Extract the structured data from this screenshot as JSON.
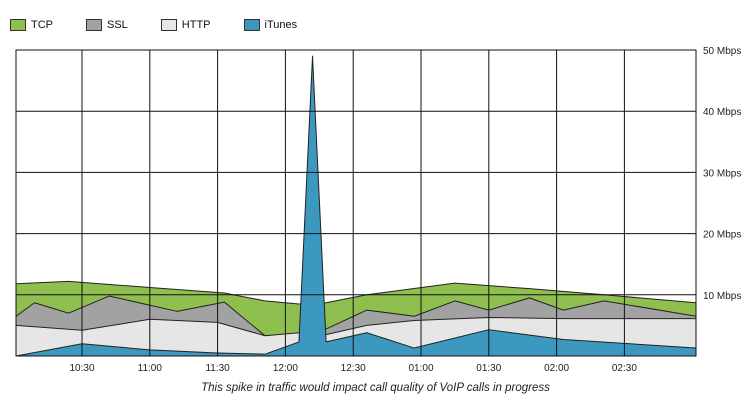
{
  "chart_data": {
    "type": "area",
    "stacked": true,
    "x_tick_labels": [
      "10:30",
      "11:00",
      "11:30",
      "12:00",
      "12:30",
      "01:00",
      "01:30",
      "02:00",
      "02:30"
    ],
    "y_tick_labels": [
      "10 Mbps",
      "20 Mbps",
      "30 Mbps",
      "40 Mbps",
      "50 Mbps"
    ],
    "ylim": [
      0,
      50
    ],
    "y_axis_side": "right",
    "grid": true,
    "legend_placement": "top-left",
    "caption": "This spike in traffic would impact call quality of VoIP calls in progress",
    "series": [
      {
        "name": "iTunes",
        "color": "#3c98bf",
        "points": [
          [
            0,
            0
          ],
          [
            1,
            2
          ],
          [
            2,
            1
          ],
          [
            3,
            0.5
          ],
          [
            3.7,
            0.3
          ],
          [
            4.2,
            2.3
          ],
          [
            4.4,
            49
          ],
          [
            4.6,
            2.3
          ],
          [
            5.2,
            3.8
          ],
          [
            5.9,
            1.3
          ],
          [
            7,
            4.3
          ],
          [
            8.1,
            2.7
          ],
          [
            9,
            1.3
          ]
        ]
      },
      {
        "name": "HTTP",
        "color": "#e6e6e6",
        "points": [
          [
            0,
            5
          ],
          [
            1,
            4.2
          ],
          [
            2,
            6
          ],
          [
            3,
            5.5
          ],
          [
            3.7,
            3.3
          ],
          [
            4.2,
            3.8
          ],
          [
            4.4,
            3.7
          ],
          [
            4.6,
            3.5
          ],
          [
            5.2,
            5
          ],
          [
            5.9,
            5.8
          ],
          [
            7,
            6.3
          ],
          [
            8.1,
            6.1
          ],
          [
            9,
            6.1
          ]
        ]
      },
      {
        "name": "SSL",
        "color": "#a2a2a2",
        "points": [
          [
            0,
            6.5
          ],
          [
            0.3,
            8.7
          ],
          [
            0.8,
            7
          ],
          [
            1.4,
            9.8
          ],
          [
            2.4,
            7.3
          ],
          [
            3.1,
            8.8
          ],
          [
            3.7,
            3.3
          ],
          [
            4.4,
            3.5
          ],
          [
            4.6,
            4.4
          ],
          [
            5.2,
            7.5
          ],
          [
            5.9,
            6.5
          ],
          [
            6.5,
            9
          ],
          [
            7,
            7.5
          ],
          [
            7.6,
            9.5
          ],
          [
            8.1,
            7.5
          ],
          [
            8.7,
            9
          ],
          [
            9,
            6.5
          ]
        ]
      },
      {
        "name": "TCP",
        "color": "#8fbf4f",
        "points": [
          [
            0,
            11.8
          ],
          [
            0.8,
            12.2
          ],
          [
            2,
            11.2
          ],
          [
            3.1,
            10.3
          ],
          [
            3.7,
            9
          ],
          [
            4.2,
            8.5
          ],
          [
            4.6,
            8.7
          ],
          [
            5.2,
            10
          ],
          [
            6.5,
            11.9
          ],
          [
            7.6,
            11
          ],
          [
            8.7,
            10
          ],
          [
            9,
            8.7
          ]
        ]
      }
    ],
    "legend": [
      {
        "name": "TCP",
        "color": "#8fbf4f"
      },
      {
        "name": "SSL",
        "color": "#a2a2a2"
      },
      {
        "name": "HTTP",
        "color": "#e6e6e6"
      },
      {
        "name": "iTunes",
        "color": "#3c98bf"
      }
    ]
  }
}
